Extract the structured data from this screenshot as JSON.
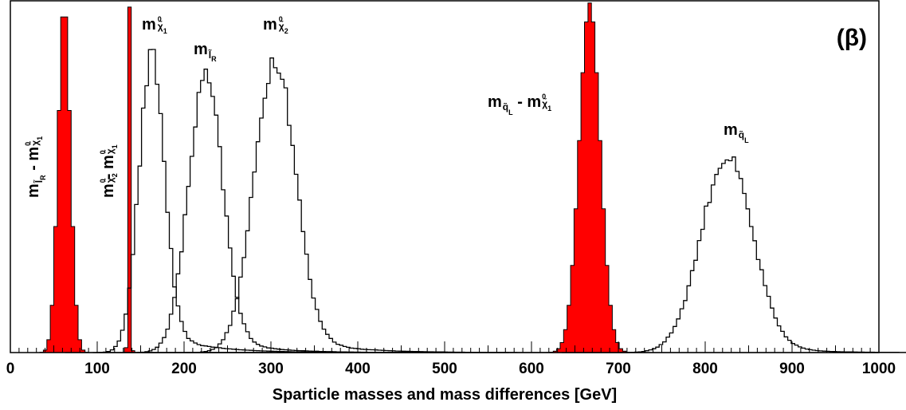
{
  "chart_data": {
    "type": "histogram",
    "title": "",
    "panel_label": "(β)",
    "xlabel": "Sparticle masses and mass differences [GeV]",
    "ylabel": "",
    "xlim": [
      0,
      1000
    ],
    "ylim": [
      0,
      1.17
    ],
    "grid": false,
    "legend": "none",
    "x_ticks": [
      0,
      100,
      200,
      300,
      400,
      500,
      600,
      700,
      800,
      900,
      1000
    ],
    "colors": {
      "filled": "#ff0000",
      "outline": "#000000"
    },
    "series": [
      {
        "label": "m_slepR - m_chi1",
        "style": "filled",
        "peak_x": 62,
        "peak_y": 1.16,
        "sigma": 7,
        "tail": 0
      },
      {
        "label": "m_chi2 - m_chi1",
        "style": "filled",
        "peak_x": 137,
        "peak_y": 1.16,
        "sigma": 1.3,
        "tail": 0
      },
      {
        "label": "m_chi1",
        "style": "outline",
        "peak_x": 163,
        "peak_y": 1.0,
        "sigma": 15,
        "tail": 48
      },
      {
        "label": "m_slepR",
        "style": "outline",
        "peak_x": 225,
        "peak_y": 0.93,
        "sigma": 20,
        "tail": 45
      },
      {
        "label": "m_chi2",
        "style": "outline",
        "peak_x": 305,
        "peak_y": 1.0,
        "sigma": 24,
        "tail": 52
      },
      {
        "label": "m_sqL - m_chi1",
        "style": "filled",
        "peak_x": 667,
        "peak_y": 1.16,
        "sigma": 12,
        "tail": 6
      },
      {
        "label": "m_sqL",
        "style": "outline",
        "peak_x": 825,
        "peak_y": 0.66,
        "sigma": 30,
        "tail": 45
      }
    ],
    "annotations": [
      {
        "id": "m-chi1",
        "main": "m",
        "sub": "χ̃",
        "subsub": "1",
        "sup": "0"
      },
      {
        "id": "m-slepR",
        "main": "m",
        "sub": "l̃",
        "subsub": "R"
      },
      {
        "id": "m-chi2",
        "main": "m",
        "sub": "χ̃",
        "subsub": "2",
        "sup": "0"
      },
      {
        "id": "m-sqL-minus-chi1",
        "main": "m",
        "sub": "q̃",
        "subsub": "L",
        "mid": " - m",
        "sub2": "χ̃",
        "subsub2": "1",
        "sup2": "0"
      },
      {
        "id": "m-sqL",
        "main": "m",
        "sub": "q̃",
        "subsub": "L"
      },
      {
        "id": "m-slepR-minus-chi1",
        "main": "m",
        "sub": "l̃",
        "subsub": "R",
        "mid": " - m",
        "sub2": "χ̃",
        "subsub2": "1",
        "sup2": "0"
      },
      {
        "id": "m-chi2-minus-chi1",
        "main": "m",
        "sub": "χ̃",
        "subsub": "2",
        "sup": "0",
        "mid": "- m",
        "sub2": "χ̃",
        "subsub2": "1",
        "sup2": "0"
      }
    ]
  }
}
